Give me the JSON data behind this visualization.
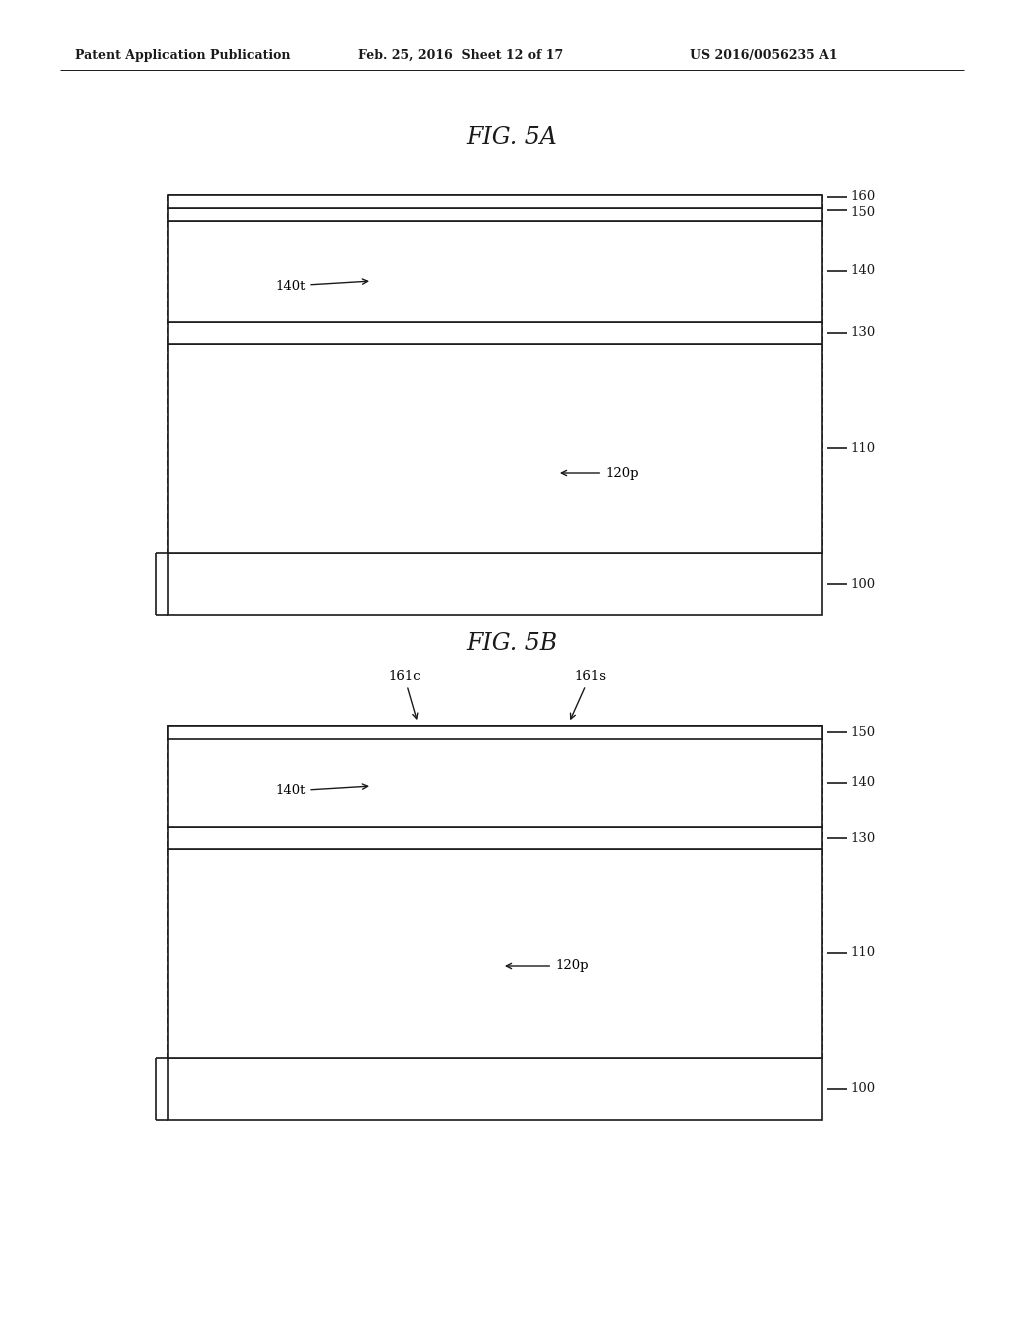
{
  "header_left": "Patent Application Publication",
  "header_mid": "Feb. 25, 2016  Sheet 12 of 17",
  "header_right": "US 2016/0056235 A1",
  "fig5a_title": "FIG. 5A",
  "fig5b_title": "FIG. 5B",
  "bg_color": "#ffffff",
  "line_color": "#1a1a1a",
  "line_width": 1.2
}
